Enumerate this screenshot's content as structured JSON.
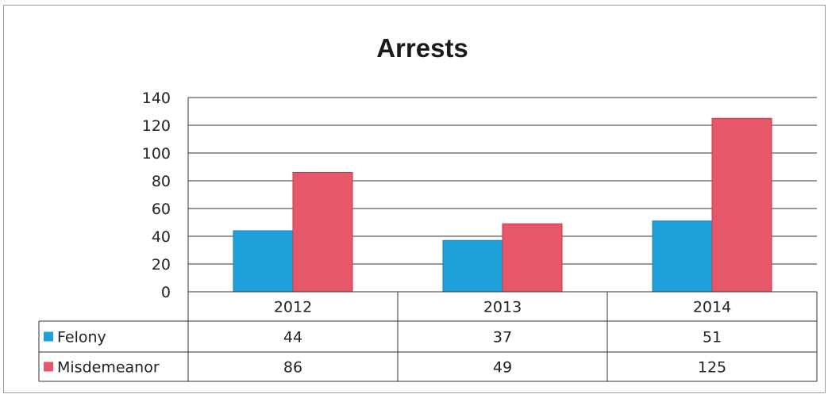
{
  "chart_data": {
    "type": "bar",
    "title": "Arrests",
    "categories": [
      "2012",
      "2013",
      "2014"
    ],
    "series": [
      {
        "name": "Felony",
        "values": [
          44,
          37,
          51
        ],
        "color": "#1fa2dc",
        "edge": "#1b7fb0"
      },
      {
        "name": "Misdemeanor",
        "values": [
          86,
          49,
          125
        ],
        "color": "#e6576a",
        "edge": "#c23a4d"
      }
    ],
    "ylim": [
      0,
      140
    ],
    "yticks": [
      0,
      20,
      40,
      60,
      80,
      100,
      120,
      140
    ],
    "grid": true,
    "legend": "data table"
  }
}
